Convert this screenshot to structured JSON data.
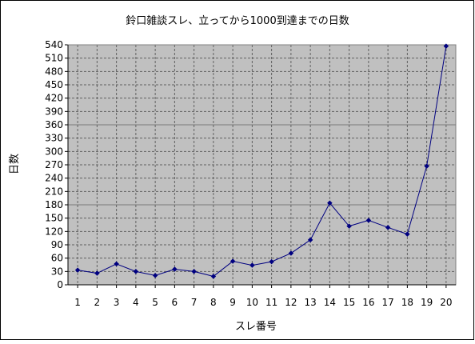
{
  "chart_data": {
    "type": "line",
    "title": "鈴口雑談スレ、立ってから1000到達までの日数",
    "xlabel": "スレ番号",
    "ylabel": "日数",
    "categories": [
      "1",
      "2",
      "3",
      "4",
      "5",
      "6",
      "7",
      "8",
      "9",
      "10",
      "11",
      "12",
      "13",
      "14",
      "15",
      "16",
      "17",
      "18",
      "19",
      "20"
    ],
    "series": [
      {
        "values": [
          33,
          26,
          47,
          30,
          21,
          35,
          30,
          19,
          53,
          44,
          52,
          71,
          101,
          184,
          132,
          145,
          129,
          114,
          267,
          537
        ],
        "color": "#000080"
      }
    ],
    "ylim": [
      0,
      540
    ],
    "ytick_step": 30,
    "grid": true,
    "plot_background": "#c0c0c0",
    "legend": "none"
  }
}
